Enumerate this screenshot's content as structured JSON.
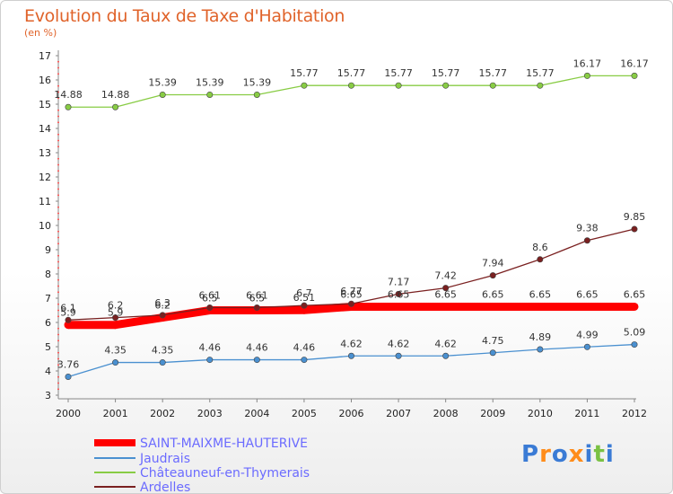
{
  "chart_data": {
    "type": "line",
    "title": "Evolution du Taux de Taxe d'Habitation",
    "unit_label": "(en %)",
    "x": [
      "2000",
      "2001",
      "2002",
      "2003",
      "2004",
      "2005",
      "2006",
      "2007",
      "2008",
      "2009",
      "2010",
      "2011",
      "2012"
    ],
    "ylim": [
      3,
      17
    ],
    "yticks": [
      3,
      4,
      5,
      6,
      7,
      8,
      9,
      10,
      11,
      12,
      13,
      14,
      15,
      16,
      17
    ],
    "grid": false,
    "legend_position": "bottom-left",
    "series": [
      {
        "name": "SAINT-MAIXME-HAUTERIVE",
        "color": "#ff0000",
        "values": [
          5.9,
          5.9,
          6.2,
          6.5,
          6.5,
          6.51,
          6.65,
          6.65,
          6.65,
          6.65,
          6.65,
          6.65,
          6.65
        ],
        "labels": [
          "5.9",
          "5.9",
          "6.2",
          "6.5",
          "6.5",
          "6.51",
          "6.65",
          "6.65",
          "6.65",
          "6.65",
          "6.65",
          "6.65",
          "6.65"
        ]
      },
      {
        "name": "Jaudrais",
        "color": "#4a90d0",
        "values": [
          3.76,
          4.35,
          4.35,
          4.46,
          4.46,
          4.46,
          4.62,
          4.62,
          4.62,
          4.75,
          4.89,
          4.99,
          5.09
        ],
        "labels": [
          "3.76",
          "4.35",
          "4.35",
          "4.46",
          "4.46",
          "4.46",
          "4.62",
          "4.62",
          "4.62",
          "4.75",
          "4.89",
          "4.99",
          "5.09"
        ]
      },
      {
        "name": "Châteauneuf-en-Thymerais",
        "color": "#88cc44",
        "values": [
          14.88,
          14.88,
          15.39,
          15.39,
          15.39,
          15.77,
          15.77,
          15.77,
          15.77,
          15.77,
          15.77,
          16.17,
          16.17
        ],
        "labels": [
          "14.88",
          "14.88",
          "15.39",
          "15.39",
          "15.39",
          "15.77",
          "15.77",
          "15.77",
          "15.77",
          "15.77",
          "15.77",
          "16.17",
          "16.17"
        ]
      },
      {
        "name": "Ardelles",
        "color": "#7a2020",
        "values": [
          6.1,
          6.2,
          6.3,
          6.61,
          6.61,
          6.7,
          6.77,
          7.17,
          7.42,
          7.94,
          8.6,
          9.38,
          9.85
        ],
        "labels": [
          "6.1",
          "6.2",
          "6.3",
          "6.61",
          "6.61",
          "6.7",
          "6.77",
          "7.17",
          "7.42",
          "7.94",
          "8.6",
          "9.38",
          "9.85"
        ]
      }
    ]
  },
  "branding": {
    "logo_text": "Proxiti"
  }
}
